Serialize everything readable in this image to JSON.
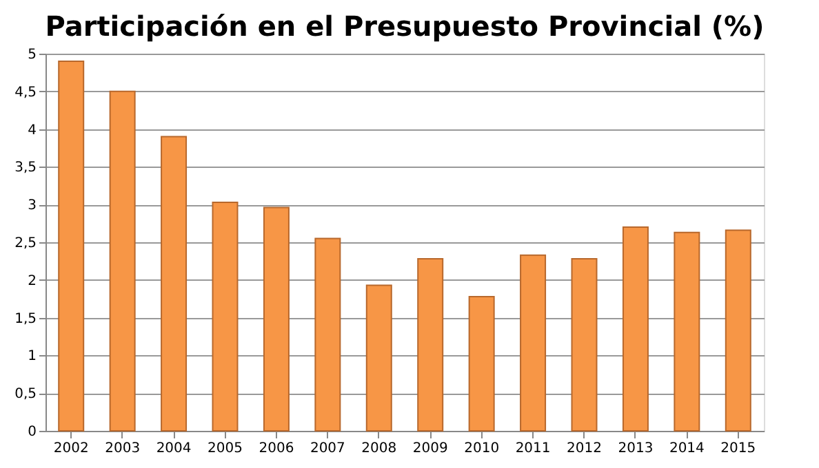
{
  "chart_data": {
    "type": "bar",
    "title": "Participación en el Presupuesto Provincial (%)",
    "categories": [
      "2002",
      "2003",
      "2004",
      "2005",
      "2006",
      "2007",
      "2008",
      "2009",
      "2010",
      "2011",
      "2012",
      "2013",
      "2014",
      "2015"
    ],
    "values": [
      4.9,
      4.5,
      3.9,
      3.03,
      2.96,
      2.55,
      1.93,
      2.28,
      1.78,
      2.33,
      2.28,
      2.7,
      2.63,
      2.66
    ],
    "color": "#f79646",
    "ylim": [
      0,
      5
    ],
    "yticks": [
      0,
      {
        "value": 0.5,
        "label": "0,5"
      },
      1,
      {
        "value": 1.5,
        "label": "1,5"
      },
      2,
      {
        "value": 2.5,
        "label": "2,5"
      },
      3,
      {
        "value": 3.5,
        "label": "3,5"
      },
      4,
      {
        "value": 4.5,
        "label": "4,5"
      },
      5
    ],
    "grid": "y"
  }
}
